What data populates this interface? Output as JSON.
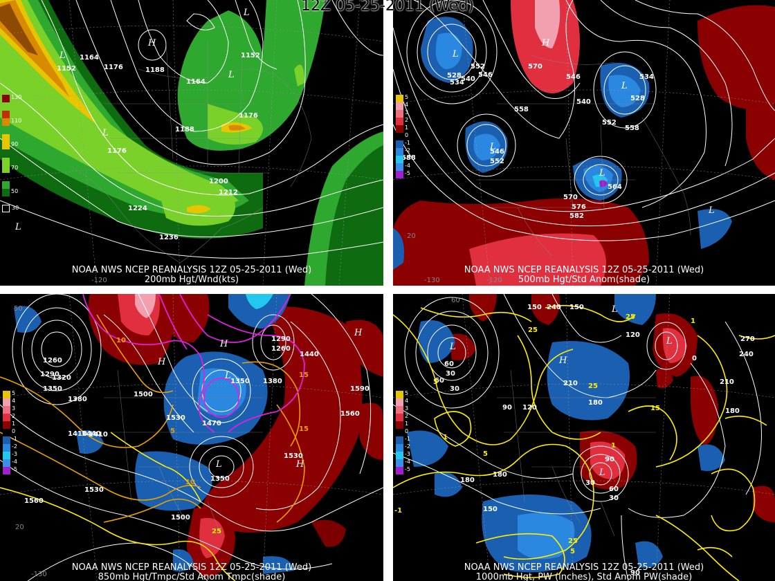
{
  "title": "12Z 05-25-2011 (Wed)",
  "colors": {
    "green_dark": "#0f6b0f",
    "green": "#2ea82e",
    "green_light": "#79d12a",
    "yellow": "#e6c600",
    "orange": "#d88a00",
    "brown": "#8e4a00",
    "red_dark": "#8b0000",
    "red": "#e03040",
    "pink": "#f2a0b0",
    "blue_dark": "#1a5fb0",
    "blue": "#2b88e0",
    "cyan": "#22c8ee",
    "purple": "#a020d0",
    "contour": "#ffffff",
    "yellow_contour": "#ffee00",
    "magenta": "#e020e0"
  },
  "panels": [
    {
      "id": "200mb",
      "caption1": "NOAA NWS NCEP REANALYSIS 12Z 05-25-2011 (Wed)",
      "caption2": "200mb Hgt/Wnd(kts)",
      "legend": [
        "130",
        "110",
        "90",
        "70",
        "50",
        "30"
      ],
      "labels": [
        "1152",
        "1164",
        "1176",
        "1188",
        "1164",
        "1152",
        "1176",
        "1188",
        "1176",
        "1200",
        "1212",
        "1224",
        "1236"
      ],
      "highs": [
        "H"
      ],
      "lows": [
        "L",
        "L",
        "L",
        "L",
        "L"
      ],
      "axis": [
        "-120"
      ]
    },
    {
      "id": "500mb",
      "caption1": "NOAA NWS NCEP REANALYSIS 12Z 05-25-2011 (Wed)",
      "caption2": "500mb Hgt/Std Anom(shade)",
      "legend": [
        "5",
        "4",
        "3",
        "2",
        "1",
        "0",
        "-1",
        "-2",
        "-3",
        "-4",
        "-5"
      ],
      "labels": [
        "552",
        "546",
        "540",
        "534",
        "528",
        "570",
        "546",
        "540",
        "534",
        "528",
        "552",
        "558",
        "558",
        "552",
        "546",
        "582",
        "570",
        "576",
        "564",
        "588"
      ],
      "highs": [
        "H"
      ],
      "lows": [
        "L",
        "L",
        "L",
        "L",
        "L"
      ],
      "axis": [
        "20",
        "-130",
        "-120"
      ]
    },
    {
      "id": "850mb",
      "caption1": "NOAA NWS NCEP REANALYSIS 12Z 05-25-2011 (Wed)",
      "caption2": "850mb Hgt/Tmpc/Std Anom Tmpc(shade)",
      "legend": [
        "5",
        "4",
        "3",
        "2",
        "1",
        "0",
        "-1",
        "-2",
        "-3",
        "-4",
        "-5"
      ],
      "labels": [
        "1260",
        "1290",
        "1320",
        "1350",
        "1380",
        "1410",
        "1440",
        "1500",
        "1530",
        "1470",
        "1350",
        "1380",
        "1440",
        "1560",
        "1590",
        "1530",
        "1500",
        "1530",
        "1560",
        "1350",
        "1410",
        "1260",
        "1290"
      ],
      "highs": [
        "H",
        "H",
        "H",
        "H"
      ],
      "lows": [
        "L",
        "L"
      ],
      "temps": [
        "10",
        "15",
        "5",
        "10",
        "15",
        "25"
      ],
      "axis": [
        "50",
        "20",
        "-130"
      ]
    },
    {
      "id": "1000mb",
      "caption1": "NOAA NWS NCEP REANALYSIS 12Z 05-25-2011 (Wed)",
      "caption2": "1000mb Hgt, PW (inches), Std Anom PW(shade)",
      "legend": [
        "5",
        "4",
        "3",
        "2",
        "1",
        "0",
        "-1",
        "-2",
        "-3",
        "-4",
        "-5"
      ],
      "labels": [
        "150",
        "180",
        "240",
        "150",
        "120",
        "270",
        "240",
        "210",
        "180",
        "210",
        "180",
        "120",
        "90",
        "60",
        "30",
        "60",
        "30",
        "90",
        "150",
        "180",
        "90",
        "30",
        "60",
        "30",
        "0"
      ],
      "highs": [
        "H"
      ],
      "lows": [
        "L",
        "L",
        "L",
        "L"
      ],
      "pw": [
        "25",
        "5",
        "1",
        "25",
        "15",
        "1",
        "5",
        "1",
        "25",
        "5",
        "25"
      ],
      "axis": [
        "60",
        "-1"
      ]
    }
  ]
}
